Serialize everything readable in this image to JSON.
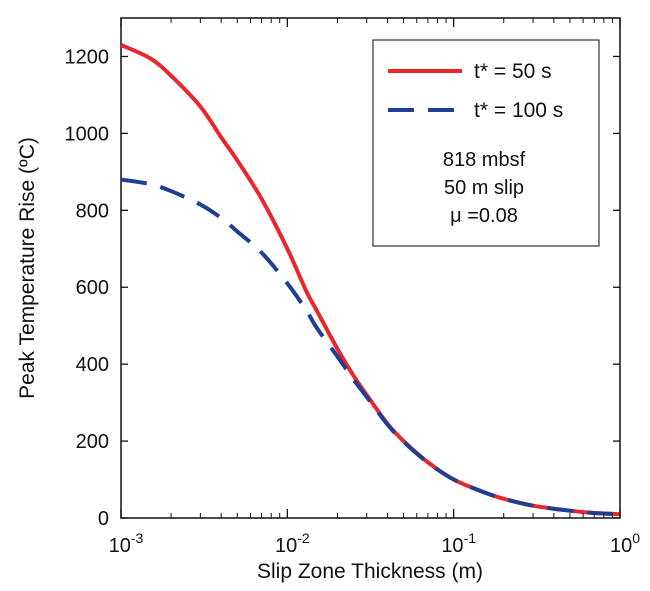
{
  "chart_data": {
    "type": "line",
    "title": "",
    "xlabel": "Slip Zone Thickness (m)",
    "ylabel": "Peak Temperature Rise (ºC)",
    "xscale": "log",
    "xlim": [
      0.001,
      1
    ],
    "ylim": [
      0,
      1300
    ],
    "grid": false,
    "legend_position": "top-right",
    "x_ticks": [
      {
        "value": 0.001,
        "base": "10",
        "exp": "-3"
      },
      {
        "value": 0.01,
        "base": "10",
        "exp": "-2"
      },
      {
        "value": 0.1,
        "base": "10",
        "exp": "-1"
      },
      {
        "value": 1,
        "base": "10",
        "exp": "0"
      }
    ],
    "y_ticks": [
      0,
      200,
      400,
      600,
      800,
      1000,
      1200
    ],
    "y_tick_labels": [
      "0",
      "200",
      "400",
      "600",
      "800",
      "1000",
      "1200"
    ],
    "series": [
      {
        "name": "t* = 50 s",
        "color": "#e8262b",
        "dash": "solid",
        "x": [
          0.001,
          0.0015,
          0.002,
          0.003,
          0.004,
          0.005,
          0.007,
          0.01,
          0.013,
          0.015,
          0.02,
          0.025,
          0.03,
          0.04,
          0.05,
          0.07,
          0.1,
          0.15,
          0.2,
          0.3,
          0.5,
          0.7,
          1.0
        ],
        "y": [
          1230,
          1195,
          1150,
          1070,
          990,
          930,
          830,
          700,
          590,
          540,
          440,
          370,
          320,
          245,
          200,
          145,
          100,
          68,
          50,
          32,
          19,
          13,
          10
        ]
      },
      {
        "name": "t* = 100 s",
        "color": "#1f3f93",
        "dash": "dashed",
        "x": [
          0.001,
          0.0015,
          0.002,
          0.003,
          0.004,
          0.005,
          0.007,
          0.01,
          0.013,
          0.015,
          0.02,
          0.025,
          0.03,
          0.04,
          0.05,
          0.07,
          0.1,
          0.15,
          0.2,
          0.3,
          0.5,
          0.7,
          1.0
        ],
        "y": [
          880,
          868,
          850,
          815,
          780,
          745,
          690,
          610,
          540,
          495,
          420,
          360,
          315,
          243,
          198,
          144,
          100,
          68,
          50,
          32,
          19,
          13,
          10
        ]
      }
    ],
    "annotations": [
      "818 mbsf",
      "50 m slip",
      "μ =0.08"
    ]
  }
}
